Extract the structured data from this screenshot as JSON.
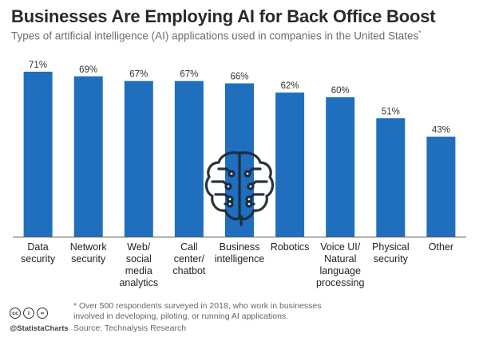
{
  "header": {
    "title": "Businesses Are Employing AI for Back Office Boost",
    "subtitle": "Types of artificial intelligence (AI) applications used in companies in the United States",
    "subtitle_marker": "*"
  },
  "footer": {
    "footnote": "* Over 500 respondents surveyed in 2018, who work in businesses involved in developing, piloting, or running AI applications.",
    "source": "Source: Technalysis Research",
    "brand": "@StatistaCharts",
    "license_icons": [
      "cc",
      "i",
      "="
    ]
  },
  "colors": {
    "bar": "#1f6fbe",
    "text": "#222222",
    "muted": "#6d6d6d"
  },
  "watermark_icon": "brain-icon",
  "chart_data": {
    "type": "bar",
    "title": "Businesses Are Employing AI for Back Office Boost",
    "subtitle": "Types of artificial intelligence (AI) applications used in companies in the United States*",
    "categories": [
      [
        "Data",
        "security"
      ],
      [
        "Network",
        "security"
      ],
      [
        "Web/",
        "social",
        "media",
        "analytics"
      ],
      [
        "Call",
        "center/",
        "chatbot"
      ],
      [
        "Business",
        "intelligence"
      ],
      [
        "Robotics"
      ],
      [
        "Voice UI/",
        "Natural",
        "language",
        "processing"
      ],
      [
        "Physical",
        "security"
      ],
      [
        "Other"
      ]
    ],
    "values": [
      71,
      69,
      67,
      67,
      66,
      62,
      60,
      51,
      43
    ],
    "value_labels": [
      "71%",
      "69%",
      "67%",
      "67%",
      "66%",
      "62%",
      "60%",
      "51%",
      "43%"
    ],
    "ylim": [
      0,
      71
    ],
    "unit": "%",
    "grid": false,
    "legend": "none"
  }
}
